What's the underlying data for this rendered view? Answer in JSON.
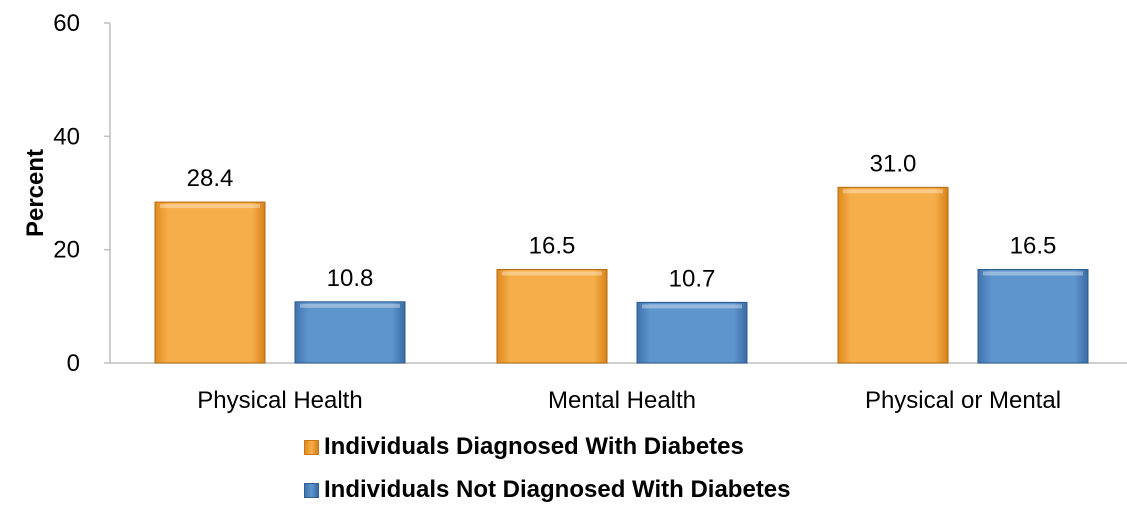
{
  "chart_data": {
    "type": "bar",
    "categories": [
      "Physical Health",
      "Mental Health",
      "Physical or Mental"
    ],
    "series": [
      {
        "name": "Individuals Diagnosed With Diabetes",
        "values": [
          28.4,
          16.5,
          31.0
        ],
        "labels": [
          "28.4",
          "16.5",
          "31.0"
        ],
        "color": "#F4A742"
      },
      {
        "name": "Individuals Not Diagnosed With Diabetes",
        "values": [
          10.8,
          10.7,
          16.5
        ],
        "labels": [
          "10.8",
          "10.7",
          "16.5"
        ],
        "color": "#5A8FC8"
      }
    ],
    "ylabel": "Percent",
    "xlabel": "",
    "ylim": [
      0,
      60
    ],
    "yticks": [
      "0",
      "20",
      "40",
      "60"
    ],
    "grid": false,
    "legend_position": "bottom"
  }
}
